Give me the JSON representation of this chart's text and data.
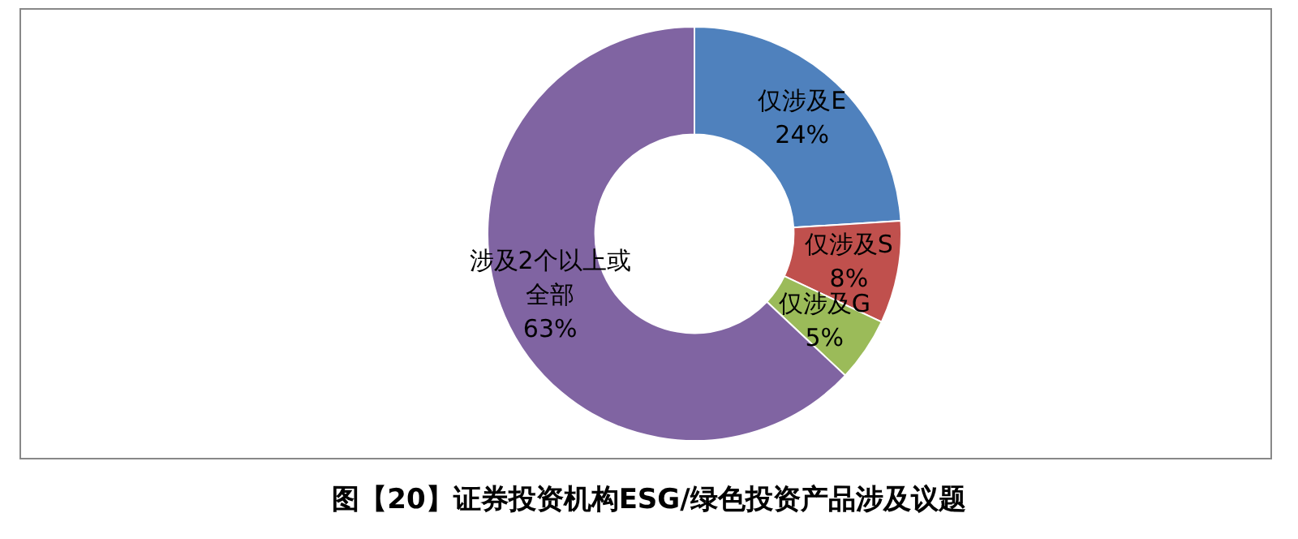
{
  "chart_data": {
    "type": "donut",
    "title": "图【20】证券投资机构ESG/绿色投资产品涉及议题",
    "categories": [
      "仅涉及E",
      "仅涉及S",
      "仅涉及G",
      "涉及2个以上或全部"
    ],
    "values": [
      24,
      8,
      5,
      63
    ],
    "colors": [
      "#4f81bd",
      "#c0504d",
      "#9bbb59",
      "#8064a2"
    ],
    "value_labels": [
      "24%",
      "8%",
      "5%",
      "63%"
    ],
    "legend": false
  }
}
